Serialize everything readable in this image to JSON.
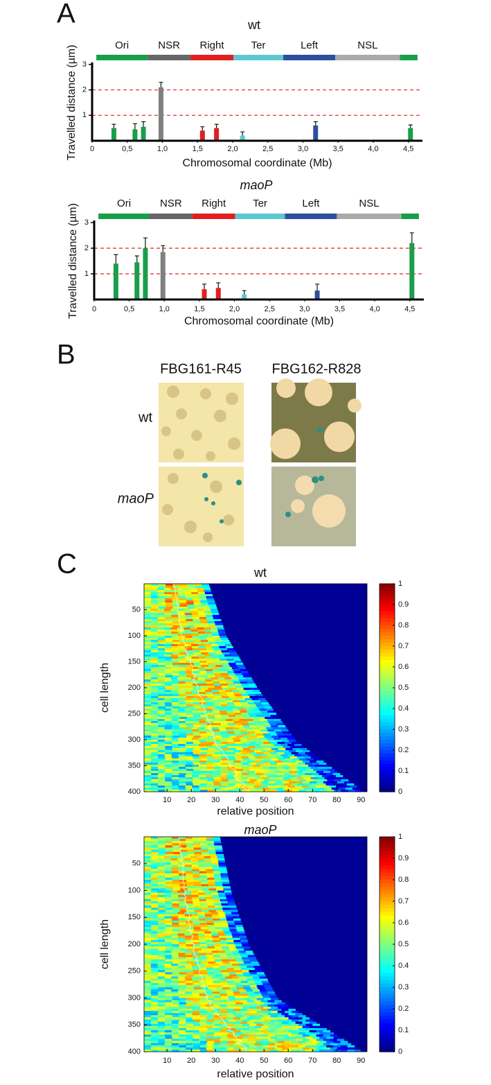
{
  "panel_labels": [
    "A",
    "B",
    "C"
  ],
  "chart_data": [
    {
      "type": "bar",
      "title": "wt",
      "title_style": "normal",
      "x_label": "Chromosomal coordinate (Mb)",
      "y_label": "Travelled distance (µm)",
      "xlim": [
        0,
        4.7
      ],
      "ylim": [
        0,
        3
      ],
      "xticks": [
        0,
        {
          "value": 0.5,
          "label": "0,5"
        },
        {
          "value": 1,
          "label": "1,0"
        },
        {
          "value": 1.5,
          "label": "1,5"
        },
        {
          "value": 2,
          "label": "2,0"
        },
        {
          "value": 2.5,
          "label": "2,5"
        },
        {
          "value": 3,
          "label": "3,0"
        },
        {
          "value": 3.5,
          "label": "3,5"
        },
        {
          "value": 4,
          "label": "4,0"
        },
        {
          "value": 4.5,
          "label": "4,5"
        }
      ],
      "yticks": [
        1,
        2,
        3
      ],
      "reference_lines": {
        "values": [
          1,
          2
        ],
        "color": "#e02020"
      },
      "regions": [
        {
          "name": "Ori",
          "color": "#1a9e4a",
          "start": 0.06,
          "end": 0.79
        },
        {
          "name": "NSR",
          "color": "#666666",
          "start": 0.79,
          "end": 1.4
        },
        {
          "name": "Right",
          "color": "#e02020",
          "start": 1.4,
          "end": 2.01
        },
        {
          "name": "Ter",
          "color": "#5ec8d2",
          "start": 2.01,
          "end": 2.72
        },
        {
          "name": "Left",
          "color": "#2d4f9e",
          "start": 2.72,
          "end": 3.46
        },
        {
          "name": "NSL",
          "color": "#aaaaaa",
          "start": 3.46,
          "end": 4.38
        },
        {
          "name": null,
          "color": "#1a9e4a",
          "start": 4.38,
          "end": 4.63
        }
      ],
      "x": [
        0.31,
        0.61,
        0.73,
        0.98,
        1.57,
        1.77,
        2.14,
        3.18,
        4.53
      ],
      "values": [
        0.5,
        0.45,
        0.55,
        2.1,
        0.4,
        0.5,
        0.2,
        0.6,
        0.5
      ],
      "errors": [
        0.15,
        0.22,
        0.2,
        0.2,
        0.15,
        0.15,
        0.15,
        0.15,
        0.12
      ],
      "colors": [
        "#1a9e4a",
        "#1a9e4a",
        "#1a9e4a",
        "#808080",
        "#e02020",
        "#e02020",
        "#5ec8d2",
        "#2d4f9e",
        "#1a9e4a"
      ]
    },
    {
      "type": "bar",
      "title": "maoP",
      "title_style": "italic",
      "x_label": "Chromosomal coordinate (Mb)",
      "y_label": "Travelled distance (µm)",
      "xlim": [
        0,
        4.7
      ],
      "ylim": [
        0,
        3
      ],
      "xticks": [
        0,
        {
          "value": 0.5,
          "label": "0,5"
        },
        {
          "value": 1,
          "label": "1,0"
        },
        {
          "value": 1.5,
          "label": "1,5"
        },
        {
          "value": 2,
          "label": "2,0"
        },
        {
          "value": 2.5,
          "label": "2,5"
        },
        {
          "value": 3,
          "label": "3,0"
        },
        {
          "value": 3.5,
          "label": "3,5"
        },
        {
          "value": 4,
          "label": "4,0"
        },
        {
          "value": 4.5,
          "label": "4,5"
        }
      ],
      "yticks": [
        1,
        2,
        3
      ],
      "reference_lines": {
        "values": [
          1,
          2
        ],
        "color": "#e02020"
      },
      "regions": [
        {
          "name": "Ori",
          "color": "#1a9e4a",
          "start": 0.06,
          "end": 0.79
        },
        {
          "name": "NSR",
          "color": "#666666",
          "start": 0.79,
          "end": 1.4
        },
        {
          "name": "Right",
          "color": "#e02020",
          "start": 1.4,
          "end": 2.01
        },
        {
          "name": "Ter",
          "color": "#5ec8d2",
          "start": 2.01,
          "end": 2.72
        },
        {
          "name": "Left",
          "color": "#2d4f9e",
          "start": 2.72,
          "end": 3.46
        },
        {
          "name": "NSL",
          "color": "#aaaaaa",
          "start": 3.46,
          "end": 4.38
        },
        {
          "name": null,
          "color": "#1a9e4a",
          "start": 4.38,
          "end": 4.63
        }
      ],
      "x": [
        0.31,
        0.61,
        0.73,
        0.98,
        1.57,
        1.77,
        2.14,
        3.18,
        4.53
      ],
      "values": [
        1.4,
        1.45,
        2.0,
        1.85,
        0.4,
        0.45,
        0.2,
        0.35,
        2.2
      ],
      "errors": [
        0.35,
        0.25,
        0.4,
        0.25,
        0.2,
        0.2,
        0.15,
        0.25,
        0.4
      ],
      "colors": [
        "#1a9e4a",
        "#1a9e4a",
        "#1a9e4a",
        "#808080",
        "#e02020",
        "#e02020",
        "#5ec8d2",
        "#2d4f9e",
        "#1a9e4a"
      ]
    },
    {
      "type": "heatmap",
      "title": "wt",
      "title_style": "normal",
      "x_label": "relative position",
      "y_label": "cell length",
      "xlim": [
        0.5,
        92.5
      ],
      "ylim": [
        0,
        400
      ],
      "y_reversed": true,
      "xticks": [
        10,
        20,
        30,
        40,
        50,
        60,
        70,
        80,
        90
      ],
      "yticks": [
        50,
        100,
        150,
        200,
        250,
        300,
        350,
        400
      ],
      "colorbar": {
        "lim": [
          0,
          1
        ],
        "ticks": [
          0,
          0.1,
          0.2,
          0.3,
          0.4,
          0.5,
          0.6,
          0.7,
          0.8,
          0.9,
          1
        ]
      }
    },
    {
      "type": "heatmap",
      "title": "maoP",
      "title_style": "italic",
      "x_label": "relative position",
      "y_label": "cell length",
      "xlim": [
        0.5,
        92.5
      ],
      "ylim": [
        0,
        400
      ],
      "y_reversed": true,
      "xticks": [
        10,
        20,
        30,
        40,
        50,
        60,
        70,
        80,
        90
      ],
      "yticks": [
        50,
        100,
        150,
        200,
        250,
        300,
        350,
        400
      ],
      "colorbar": {
        "lim": [
          0,
          1
        ],
        "ticks": [
          0,
          0.1,
          0.2,
          0.3,
          0.4,
          0.5,
          0.6,
          0.7,
          0.8,
          0.9,
          1
        ]
      }
    }
  ],
  "panel_b": {
    "columns": [
      "FBG161-R45",
      "FBG162-R828"
    ],
    "rows": [
      "wt",
      "maoP"
    ]
  }
}
